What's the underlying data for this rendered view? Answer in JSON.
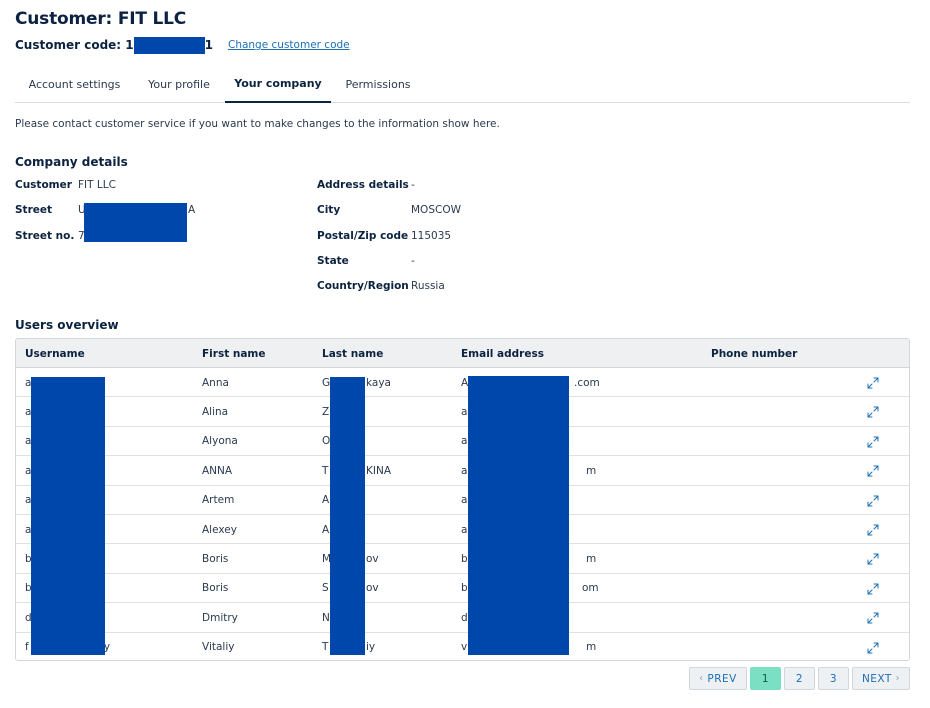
{
  "header": {
    "title": "Customer: FIT LLC",
    "code_label": "Customer code: 1",
    "code_tail": "1",
    "change_link": "Change customer code"
  },
  "tabs": [
    {
      "label": "Account settings",
      "active": false
    },
    {
      "label": "Your profile",
      "active": false
    },
    {
      "label": "Your company",
      "active": true
    },
    {
      "label": "Permissions",
      "active": false
    }
  ],
  "notice": "Please contact customer service if you want to make changes to the information show here.",
  "company": {
    "section_title": "Company details",
    "left": [
      {
        "key": "Customer",
        "value": "FIT LLC"
      },
      {
        "key": "Street",
        "value": "U",
        "value_tail": "A"
      },
      {
        "key": "Street no.",
        "value": "7"
      }
    ],
    "right": [
      {
        "key": "Address details",
        "value": "-"
      },
      {
        "key": "City",
        "value": "MOSCOW"
      },
      {
        "key": "Postal/Zip code",
        "value": "115035"
      },
      {
        "key": "State",
        "value": "-"
      },
      {
        "key": "Country/Region",
        "value": "Russia"
      }
    ]
  },
  "users": {
    "section_title": "Users overview",
    "columns": [
      "Username",
      "First name",
      "Last name",
      "Email address",
      "Phone number"
    ],
    "rows": [
      {
        "username": "a",
        "username_tail": "",
        "first": "Anna",
        "last": "G",
        "last_tail": "kaya",
        "email": "A",
        "email_tail": ".com",
        "phone": ""
      },
      {
        "username": "a",
        "username_tail": "",
        "first": "Alina",
        "last": "Z",
        "last_tail": "",
        "email": "a",
        "email_tail": "",
        "phone": ""
      },
      {
        "username": "a",
        "username_tail": "",
        "first": "Alyona",
        "last": "O",
        "last_tail": "",
        "email": "a",
        "email_tail": "",
        "phone": ""
      },
      {
        "username": "a",
        "username_tail": "",
        "first": "ANNA",
        "last": "T",
        "last_tail": "KINA",
        "email": "a",
        "email_tail": "m",
        "phone": ""
      },
      {
        "username": "a",
        "username_tail": "",
        "first": "Artem",
        "last": "A",
        "last_tail": "",
        "email": "a",
        "email_tail": "",
        "phone": ""
      },
      {
        "username": "a",
        "username_tail": "",
        "first": "Alexey",
        "last": "A",
        "last_tail": "",
        "email": "a",
        "email_tail": "",
        "phone": ""
      },
      {
        "username": "b",
        "username_tail": "",
        "first": "Boris",
        "last": "M",
        "last_tail": "ov",
        "email": "b",
        "email_tail": "m",
        "phone": ""
      },
      {
        "username": "b",
        "username_tail": "",
        "first": "Boris",
        "last": "S",
        "last_tail": "ov",
        "email": "b",
        "email_tail": "om",
        "phone": ""
      },
      {
        "username": "d",
        "username_tail": "",
        "first": "Dmitry",
        "last": "N",
        "last_tail": "",
        "email": "d",
        "email_tail": "",
        "phone": ""
      },
      {
        "username": "f",
        "username_tail": "iy",
        "first": "Vitaliy",
        "last": "T",
        "last_tail": "iy",
        "email": "v",
        "email_tail": "m",
        "phone": ""
      }
    ]
  },
  "pagination": {
    "prev": "PREV",
    "pages": [
      "1",
      "2",
      "3"
    ],
    "current": "1",
    "next": "NEXT"
  },
  "colors": {
    "redaction": "#0047ab",
    "active_page": "#7be0c3",
    "link": "#1c6fb5",
    "heading": "#0b2240"
  },
  "icons": {
    "row_action": "expand-icon"
  }
}
